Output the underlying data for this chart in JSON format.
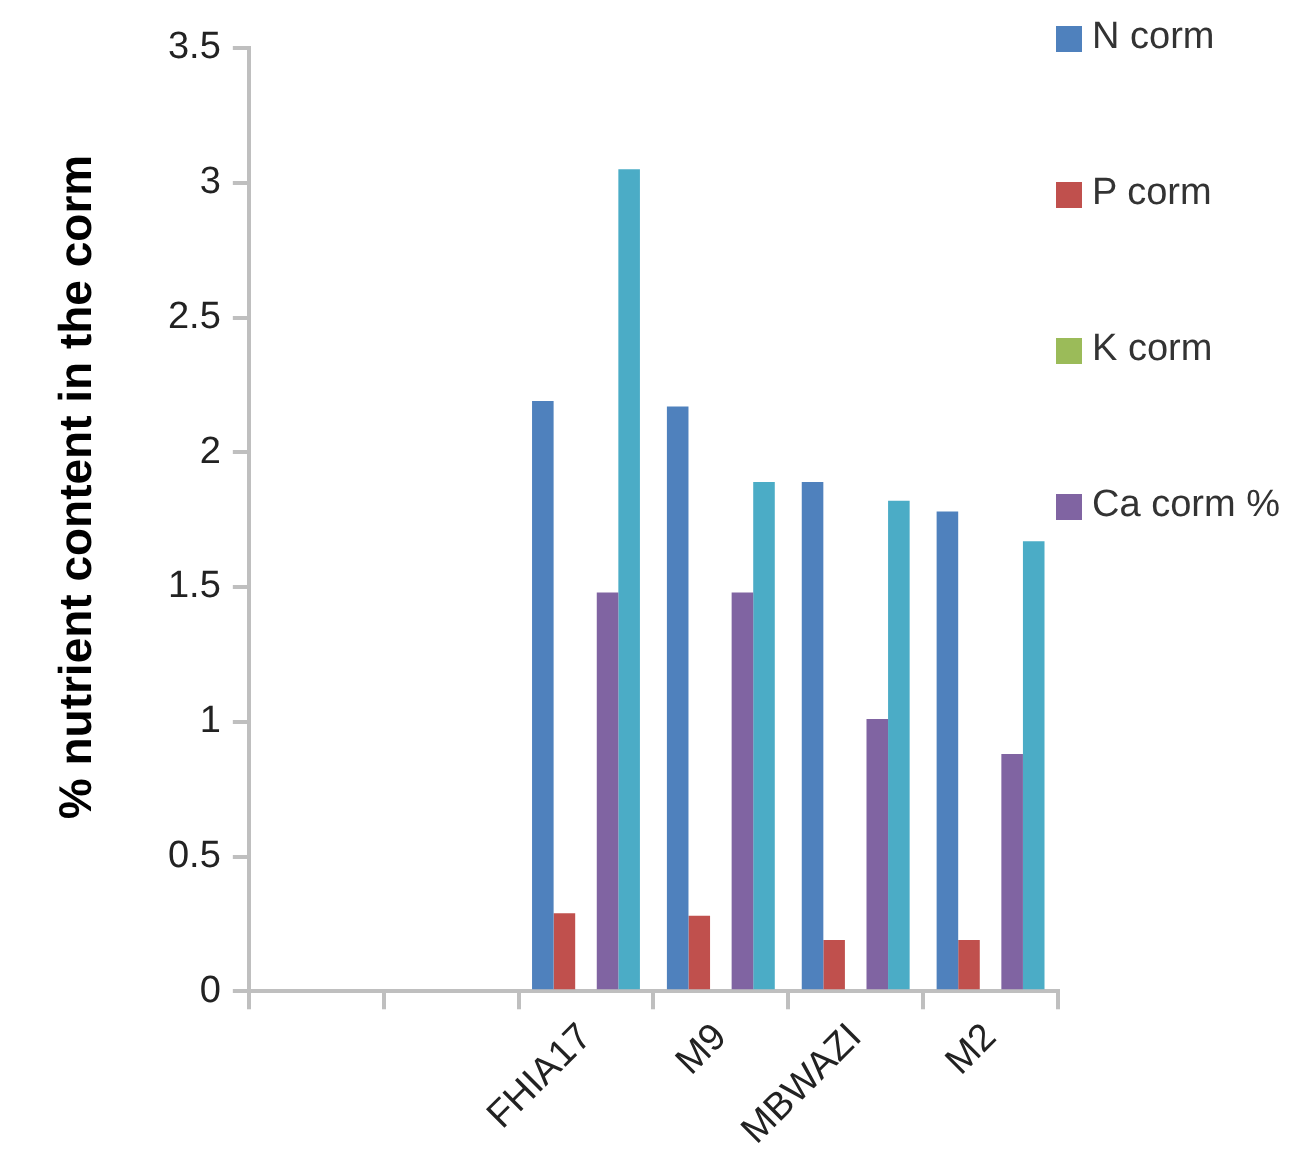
{
  "chart_data": {
    "type": "bar",
    "ylabel": "% nutrient content in the corm",
    "categories": [
      null,
      null,
      "FHIA17",
      "M9",
      "MBWAZI",
      "M2"
    ],
    "series": [
      {
        "name": "N corm",
        "color": "#4f81bd",
        "values": [
          null,
          null,
          2.19,
          2.17,
          1.89,
          1.78
        ]
      },
      {
        "name": "P corm",
        "color": "#c0504d",
        "values": [
          null,
          null,
          0.29,
          0.28,
          0.19,
          0.19
        ]
      },
      {
        "name": "K corm",
        "color": "#9bbb59",
        "values": [
          null,
          null,
          null,
          null,
          null,
          null
        ]
      },
      {
        "name": "Ca corm %",
        "color": "#8064a2",
        "values": [
          null,
          null,
          1.48,
          1.48,
          1.01,
          0.88
        ]
      },
      {
        "color": "#4bacc6",
        "values": [
          null,
          null,
          3.05,
          1.89,
          1.82,
          1.67
        ]
      }
    ],
    "ylim": [
      0,
      3.5
    ],
    "yticks": [
      0,
      0.5,
      1,
      1.5,
      2,
      2.5,
      3,
      3.5
    ],
    "grid": false,
    "legend": "right"
  }
}
